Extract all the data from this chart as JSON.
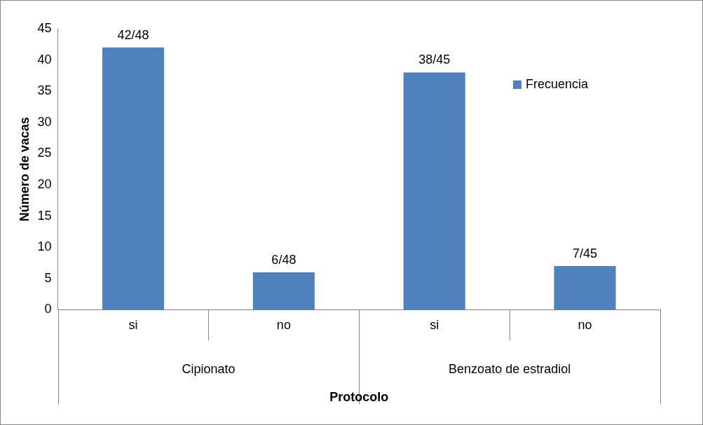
{
  "chart_data": {
    "type": "bar",
    "xlabel": "Protocolo",
    "ylabel": "Número de vacas",
    "categories": [
      "si",
      "no",
      "si",
      "no"
    ],
    "annotations": [
      "Cipionato",
      "Benzoato de estradiol"
    ],
    "series": [
      {
        "name": "Frecuencia",
        "color": "#4f81bd",
        "values": [
          42,
          6,
          38,
          7
        ],
        "value_labels": [
          "42/48",
          "6/48",
          "38/45",
          "7/45"
        ]
      }
    ],
    "ylim": [
      0,
      45
    ],
    "yticks": [
      0,
      5,
      10,
      15,
      20,
      25,
      30,
      35,
      40,
      45
    ],
    "grid": false,
    "legend": "top right"
  }
}
